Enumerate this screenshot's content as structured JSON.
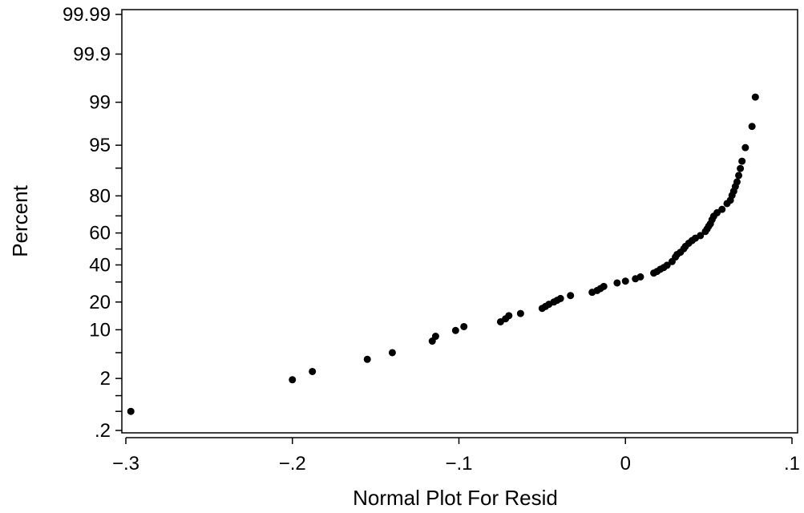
{
  "chart_data": {
    "type": "scatter",
    "title": "",
    "xlabel": "Normal Plot For Resid",
    "ylabel": "Percent",
    "xlim": [
      -0.3,
      0.1
    ],
    "x_ticks": [
      -0.3,
      -0.2,
      -0.1,
      0,
      0.1
    ],
    "x_tick_labels": [
      "−.3",
      "−.2",
      "−.1",
      "0",
      ".1"
    ],
    "y_scale": "normal-probability",
    "ylim": [
      0.2,
      99.99
    ],
    "y_ticks": [
      0.2,
      2,
      10,
      20,
      40,
      60,
      80,
      95,
      99,
      99.9,
      99.99
    ],
    "y_tick_labels": [
      ".2",
      "2",
      "10",
      "20",
      "40",
      "60",
      "80",
      "95",
      "99",
      "99.9",
      "99.99"
    ],
    "y_minor_ticks": [
      0.5,
      1,
      5,
      30,
      50,
      70,
      90
    ],
    "marker_color": "#000000",
    "points": [
      {
        "x": -0.297,
        "y": 0.5
      },
      {
        "x": -0.2,
        "y": 1.9
      },
      {
        "x": -0.188,
        "y": 2.6
      },
      {
        "x": -0.155,
        "y": 4.0
      },
      {
        "x": -0.14,
        "y": 5.0
      },
      {
        "x": -0.116,
        "y": 7.2
      },
      {
        "x": -0.114,
        "y": 8.3
      },
      {
        "x": -0.102,
        "y": 9.8
      },
      {
        "x": -0.097,
        "y": 10.9
      },
      {
        "x": -0.075,
        "y": 12.4
      },
      {
        "x": -0.072,
        "y": 13.4
      },
      {
        "x": -0.07,
        "y": 14.5
      },
      {
        "x": -0.063,
        "y": 15.3
      },
      {
        "x": -0.05,
        "y": 17.3
      },
      {
        "x": -0.048,
        "y": 18.1
      },
      {
        "x": -0.046,
        "y": 19.0
      },
      {
        "x": -0.043,
        "y": 20.0
      },
      {
        "x": -0.041,
        "y": 20.8
      },
      {
        "x": -0.039,
        "y": 21.6
      },
      {
        "x": -0.033,
        "y": 23.0
      },
      {
        "x": -0.02,
        "y": 24.6
      },
      {
        "x": -0.017,
        "y": 25.5
      },
      {
        "x": -0.015,
        "y": 26.5
      },
      {
        "x": -0.013,
        "y": 27.6
      },
      {
        "x": -0.005,
        "y": 29.5
      },
      {
        "x": 0.0,
        "y": 30.5
      },
      {
        "x": 0.006,
        "y": 31.8
      },
      {
        "x": 0.009,
        "y": 32.9
      },
      {
        "x": 0.017,
        "y": 35.1
      },
      {
        "x": 0.019,
        "y": 36.1
      },
      {
        "x": 0.021,
        "y": 37.4
      },
      {
        "x": 0.023,
        "y": 38.4
      },
      {
        "x": 0.025,
        "y": 39.8
      },
      {
        "x": 0.028,
        "y": 42.1
      },
      {
        "x": 0.03,
        "y": 44.9
      },
      {
        "x": 0.031,
        "y": 46.5
      },
      {
        "x": 0.033,
        "y": 47.9
      },
      {
        "x": 0.035,
        "y": 50.1
      },
      {
        "x": 0.036,
        "y": 51.6
      },
      {
        "x": 0.038,
        "y": 53.6
      },
      {
        "x": 0.04,
        "y": 55.3
      },
      {
        "x": 0.042,
        "y": 56.8
      },
      {
        "x": 0.045,
        "y": 58.4
      },
      {
        "x": 0.048,
        "y": 60.9
      },
      {
        "x": 0.049,
        "y": 62.4
      },
      {
        "x": 0.05,
        "y": 64.1
      },
      {
        "x": 0.051,
        "y": 65.5
      },
      {
        "x": 0.052,
        "y": 67.9
      },
      {
        "x": 0.053,
        "y": 69.8
      },
      {
        "x": 0.055,
        "y": 71.7
      },
      {
        "x": 0.058,
        "y": 73.5
      },
      {
        "x": 0.061,
        "y": 76.4
      },
      {
        "x": 0.063,
        "y": 78.0
      },
      {
        "x": 0.064,
        "y": 80.2
      },
      {
        "x": 0.065,
        "y": 82.0
      },
      {
        "x": 0.066,
        "y": 83.9
      },
      {
        "x": 0.067,
        "y": 85.6
      },
      {
        "x": 0.068,
        "y": 87.8
      },
      {
        "x": 0.069,
        "y": 89.9
      },
      {
        "x": 0.07,
        "y": 91.8
      },
      {
        "x": 0.072,
        "y": 94.6
      },
      {
        "x": 0.076,
        "y": 97.4
      },
      {
        "x": 0.078,
        "y": 99.2
      }
    ]
  }
}
